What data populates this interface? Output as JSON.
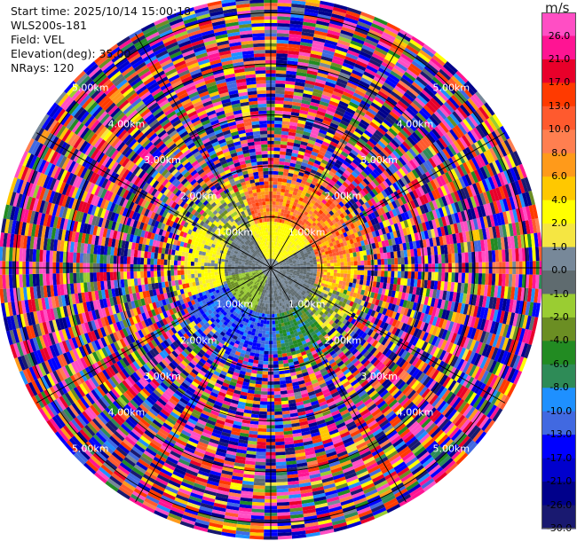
{
  "header": {
    "start_time": "Start time: 2025/10/14 15:00:18",
    "instrument": "WLS200s-181",
    "field": "Field: VEL",
    "elevation": "Elevation(deg): 35.00",
    "nrays": "NRays: 120"
  },
  "chart_data": {
    "type": "heatmap",
    "projection": "polar PPI",
    "field": "VEL",
    "range_unit": "km",
    "range_max_km": 5.3,
    "range_ring_labels": [
      "1.00km",
      "2.00km",
      "3.00km",
      "4.00km",
      "5.00km"
    ],
    "range_rings_km": [
      1,
      2,
      3,
      4,
      5
    ],
    "colorbar": {
      "unit": "m/s",
      "tick_labels": [
        "26.0",
        "21.0",
        "17.0",
        "13.0",
        "10.0",
        "8.0",
        "6.0",
        "4.0",
        "2.0",
        "1.0",
        "0.0",
        "-1.0",
        "-2.0",
        "-4.0",
        "-6.0",
        "-8.0",
        "-10.0",
        "-13.0",
        "-17.0",
        "-21.0",
        "-26.0",
        "-30.0"
      ],
      "colors": [
        "#ff4ec4",
        "#ff1493",
        "#e8002a",
        "#ff3a00",
        "#ff5a2e",
        "#ff7f50",
        "#ff9a1a",
        "#ffc800",
        "#ffff00",
        "#f5e642",
        "#778899",
        "#5f6b6f",
        "#9acd32",
        "#6b8e23",
        "#228b22",
        "#2e8b57",
        "#1e90ff",
        "#4169e1",
        "#0000ff",
        "#0000cd",
        "#00008b",
        "#191970"
      ]
    },
    "near_field_pattern": "inner ~1.2km: grey/olive near zero; NE sector positive (orange/red up to ~13 m/s); SW/S sectors negative (blue/green ~ -6 to -13 m/s); beyond ~2km: noise (random velocities)"
  }
}
